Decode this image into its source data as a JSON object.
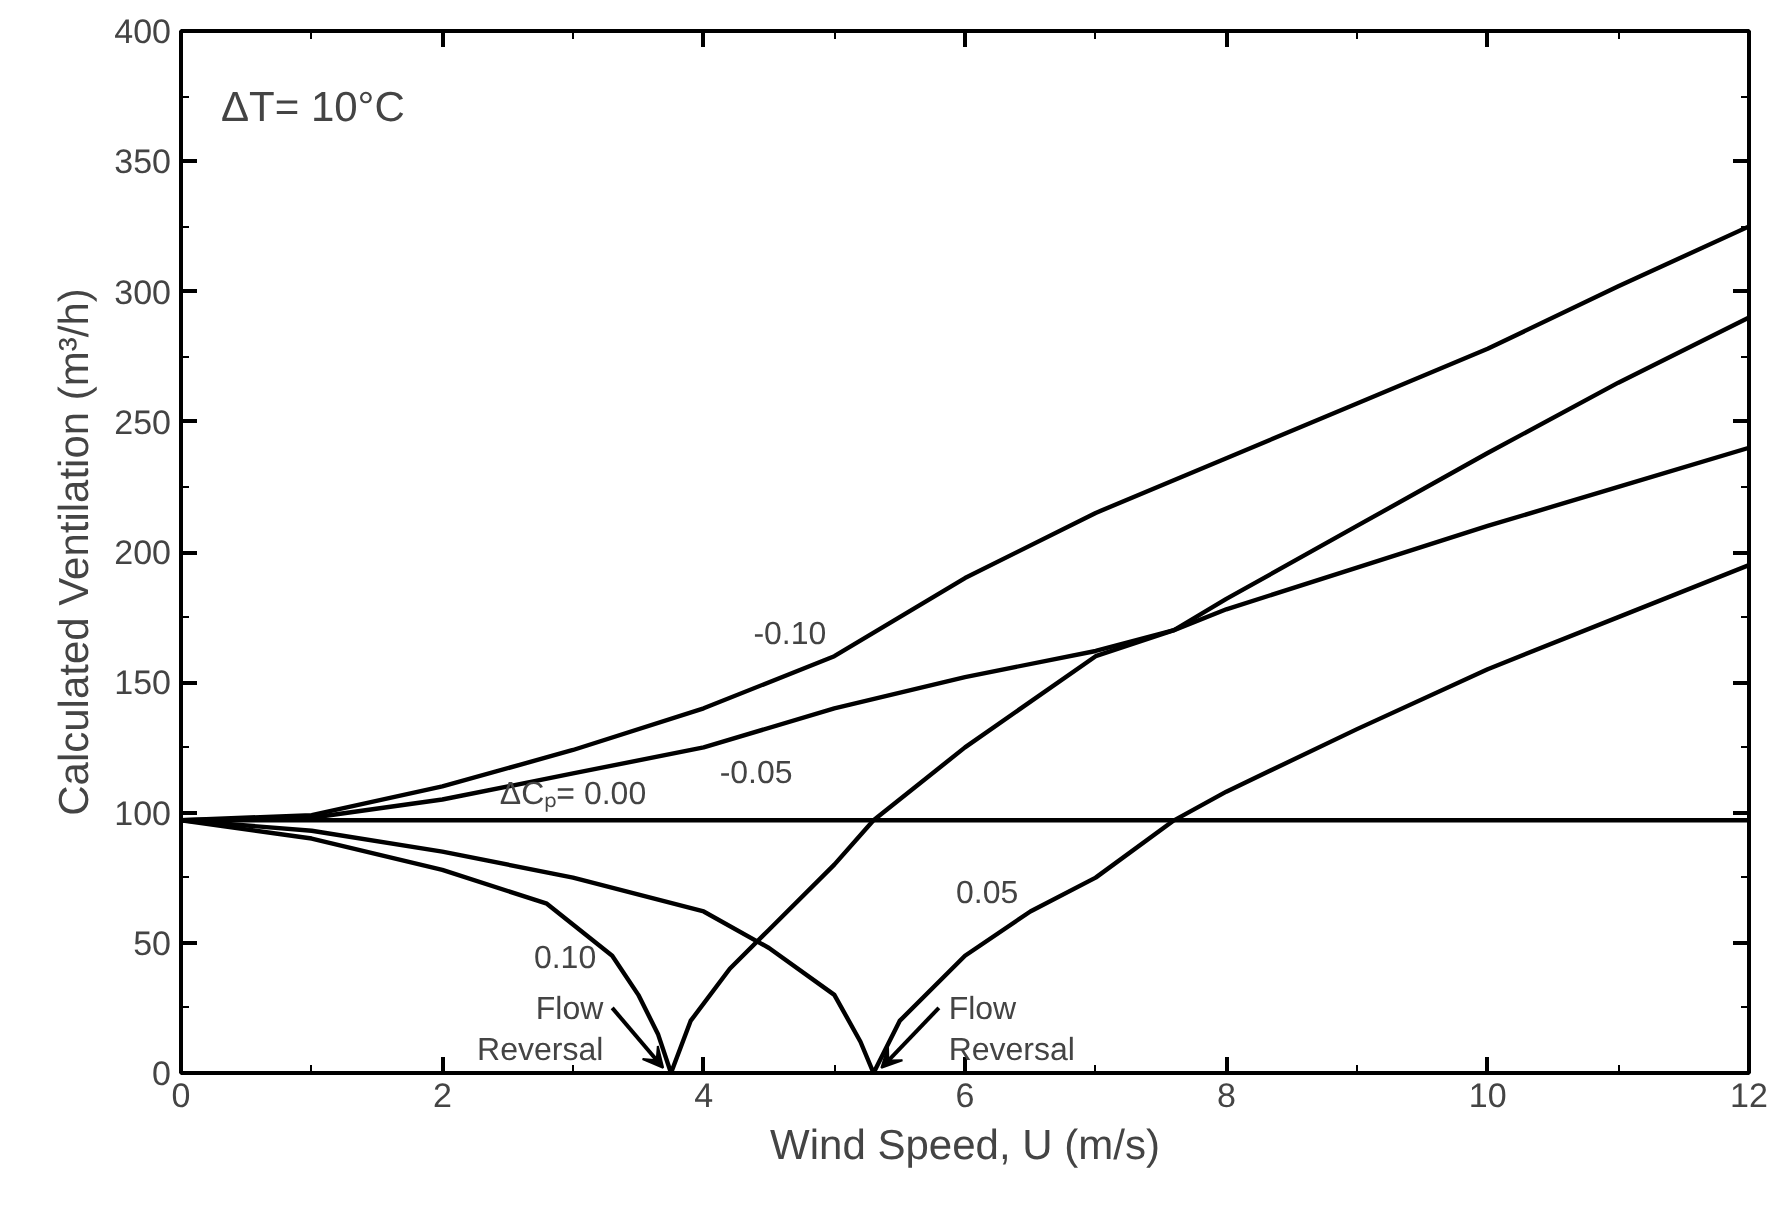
{
  "chart_data": {
    "type": "line",
    "xlabel": "Wind Speed, U (m/s)",
    "ylabel": "Calculated Ventilation (m³/h)",
    "xlim": [
      0,
      12
    ],
    "ylim": [
      0,
      400
    ],
    "xticks": [
      0,
      2,
      4,
      6,
      8,
      10,
      12
    ],
    "yticks": [
      0,
      50,
      100,
      150,
      200,
      250,
      300,
      350,
      400
    ],
    "grid": false,
    "marker": "none",
    "line_style": "solid",
    "series": [
      {
        "color": "#000000",
        "x": [
          0,
          1,
          2,
          3,
          4,
          5,
          6,
          7,
          8,
          9,
          10,
          11,
          12
        ],
        "values": [
          97,
          99,
          110,
          124,
          140,
          160,
          190,
          215,
          236,
          257,
          278,
          302,
          325
        ]
      },
      {
        "color": "#000000",
        "x": [
          0,
          1,
          2,
          3,
          4,
          5,
          6,
          7,
          7.6,
          8,
          9,
          10,
          11,
          12
        ],
        "values": [
          97,
          98,
          105,
          115,
          125,
          140,
          152,
          162,
          170,
          178,
          194,
          210,
          225,
          240
        ]
      },
      {
        "color": "#000000",
        "x": [
          0,
          12
        ],
        "values": [
          97,
          97
        ]
      },
      {
        "color": "#000000",
        "x": [
          0,
          1,
          2,
          3,
          4,
          4.5,
          5,
          5.2,
          5.3,
          5.5,
          6,
          6.5,
          7,
          7.6,
          8,
          9,
          10,
          11,
          12
        ],
        "values": [
          97,
          93,
          85,
          75,
          62,
          48,
          30,
          12,
          0,
          20,
          45,
          62,
          75,
          97,
          108,
          132,
          155,
          175,
          195
        ]
      },
      {
        "color": "#000000",
        "x": [
          0,
          1,
          2,
          2.8,
          3.3,
          3.5,
          3.65,
          3.75,
          3.9,
          4.2,
          4.5,
          5,
          5.3,
          6,
          7,
          7.6,
          8,
          9,
          10,
          11,
          12
        ],
        "values": [
          97,
          90,
          78,
          65,
          45,
          30,
          15,
          0,
          20,
          40,
          55,
          80,
          97,
          125,
          160,
          170,
          182,
          210,
          238,
          265,
          290
        ]
      }
    ],
    "annotations": [
      "ΔT= 10°C",
      {
        "text": "-0.10",
        "x": 5,
        "y": 160
      },
      {
        "text": "-0.05",
        "x": 4,
        "y": 125
      },
      {
        "text": "ΔCₚ= 0.00",
        "x": 3,
        "y": 97
      },
      {
        "text": "0.10",
        "x": 3.3,
        "y": 45
      },
      {
        "text": "0.05",
        "x": 6.5,
        "y": 62
      },
      {
        "text": "Flow Reversal",
        "x": 3.75,
        "y": 0
      },
      {
        "text": "Flow Reversal",
        "x": 5.3,
        "y": 0
      }
    ]
  }
}
